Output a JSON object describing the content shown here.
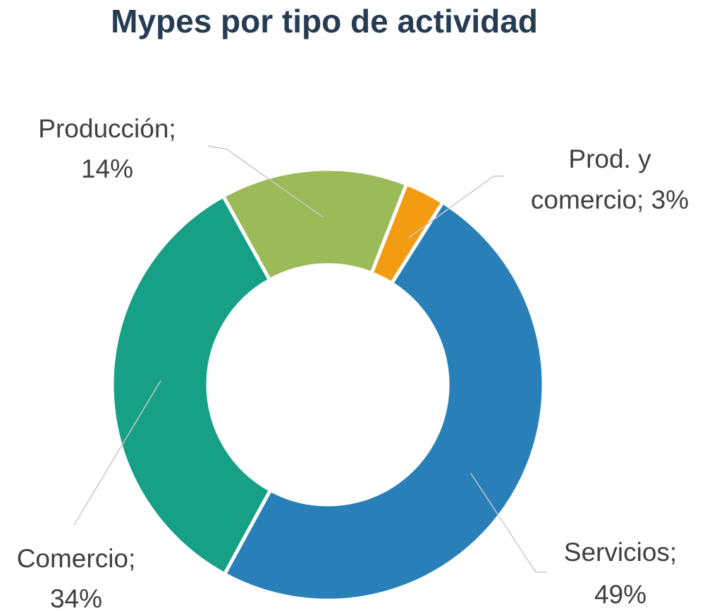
{
  "chart_data": {
    "type": "donut",
    "title": "Mypes por tipo de actividad",
    "values": [
      14,
      3,
      49,
      34
    ],
    "value_labels": [
      [
        "Producción;",
        "14%"
      ],
      [
        "Prod. y",
        "comercio; 3%"
      ],
      [
        "Servicios;",
        "49%"
      ],
      [
        "Comercio;",
        "34%"
      ]
    ],
    "colors": [
      "#9bbb59",
      "#f39c12",
      "#2980b9",
      "#16a085"
    ]
  }
}
